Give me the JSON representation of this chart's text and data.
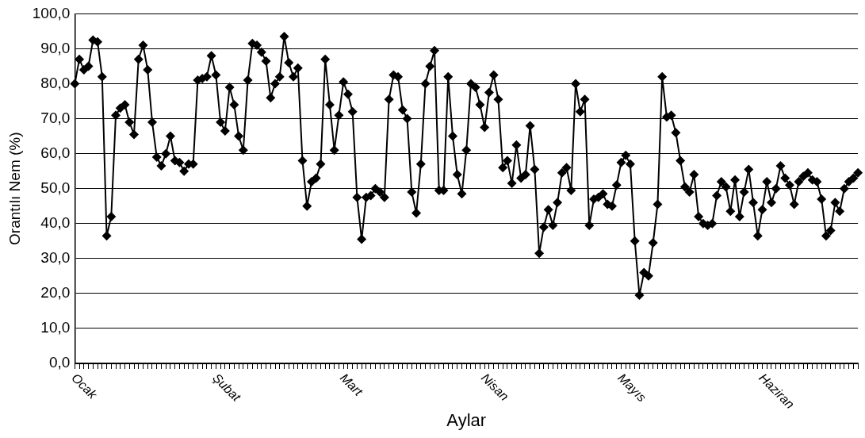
{
  "chart_data": {
    "type": "line",
    "xlabel": "Aylar",
    "ylabel": "Orantılı Nem (%)",
    "categories": [
      "Ocak",
      null,
      null,
      null,
      null,
      null,
      null,
      null,
      null,
      null,
      null,
      null,
      null,
      null,
      null,
      null,
      null,
      null,
      null,
      null,
      null,
      null,
      null,
      null,
      null,
      null,
      null,
      null,
      null,
      null,
      null,
      "Şubat",
      null,
      null,
      null,
      null,
      null,
      null,
      null,
      null,
      null,
      null,
      null,
      null,
      null,
      null,
      null,
      null,
      null,
      null,
      null,
      null,
      null,
      null,
      null,
      null,
      null,
      null,
      null,
      "Mart",
      null,
      null,
      null,
      null,
      null,
      null,
      null,
      null,
      null,
      null,
      null,
      null,
      null,
      null,
      null,
      null,
      null,
      null,
      null,
      null,
      null,
      null,
      null,
      null,
      null,
      null,
      null,
      null,
      null,
      null,
      "Nisan",
      null,
      null,
      null,
      null,
      null,
      null,
      null,
      null,
      null,
      null,
      null,
      null,
      null,
      null,
      null,
      null,
      null,
      null,
      null,
      null,
      null,
      null,
      null,
      null,
      null,
      null,
      null,
      null,
      null,
      "Mayıs",
      null,
      null,
      null,
      null,
      null,
      null,
      null,
      null,
      null,
      null,
      null,
      null,
      null,
      null,
      null,
      null,
      null,
      null,
      null,
      null,
      null,
      null,
      null,
      null,
      null,
      null,
      null,
      null,
      null,
      null,
      "Haziran",
      null,
      null,
      null,
      null,
      null,
      null,
      null,
      null,
      null,
      null,
      null,
      null,
      null,
      null,
      null,
      null,
      null,
      null,
      null,
      null,
      null
    ],
    "series": [
      {
        "color": "#000000",
        "values": [
          80,
          87,
          84,
          85,
          92.5,
          92,
          82,
          36.5,
          42,
          71,
          73,
          74,
          69,
          65.5,
          87,
          91,
          84,
          69,
          59,
          56.5,
          60,
          65,
          58,
          57.5,
          55,
          57,
          57,
          81,
          81.5,
          82,
          88,
          82.5,
          69,
          66.5,
          79,
          74,
          65,
          61,
          81,
          91.5,
          91,
          89,
          86.5,
          76,
          80,
          82,
          93.5,
          86,
          82,
          84.5,
          58,
          45,
          52,
          53,
          57,
          87,
          74,
          61,
          71,
          80.5,
          77,
          72,
          47.5,
          35.5,
          47.5,
          48,
          50,
          49,
          47.5,
          75.5,
          82.5,
          82,
          72.5,
          70,
          49,
          43,
          57,
          80,
          85,
          89.5,
          49.5,
          49.5,
          82,
          65,
          54,
          48.5,
          61,
          80,
          79,
          74,
          67.5,
          77.5,
          82.5,
          75.5,
          56,
          58,
          51.5,
          62.5,
          53,
          54,
          68,
          55.5,
          31.5,
          39,
          44,
          39.5,
          46,
          54.5,
          56,
          49.5,
          80,
          72,
          75.5,
          39.5,
          47,
          47.5,
          48.5,
          45.5,
          45,
          51,
          57.5,
          59.5,
          57,
          35,
          19.5,
          26,
          25,
          34.5,
          45.5,
          82,
          70.5,
          71,
          66,
          58,
          50.5,
          49,
          54,
          42,
          40,
          39.5,
          40,
          48,
          52,
          50.5,
          43.5,
          52.5,
          42,
          49,
          55.5,
          46,
          36.5,
          44,
          52,
          46,
          50,
          56.5,
          53,
          51,
          45.5,
          52,
          53.5,
          54.5,
          52.5,
          52,
          47,
          36.5,
          38,
          46,
          43.5,
          50,
          52,
          53,
          54.5
        ]
      }
    ],
    "ylim": [
      0,
      100
    ],
    "yticks": [
      {
        "value": 0,
        "label": "0,0"
      },
      {
        "value": 10,
        "label": "10,0"
      },
      {
        "value": 20,
        "label": "20,0"
      },
      {
        "value": 30,
        "label": "30,0"
      },
      {
        "value": 40,
        "label": "40,0"
      },
      {
        "value": 50,
        "label": "50,0"
      },
      {
        "value": 60,
        "label": "60,0"
      },
      {
        "value": 70,
        "label": "70,0"
      },
      {
        "value": 80,
        "label": "80,0"
      },
      {
        "value": 90,
        "label": "90,0"
      },
      {
        "value": 100,
        "label": "100,0"
      }
    ],
    "grid": "y",
    "marker": "diamond",
    "line_style": "solid"
  }
}
